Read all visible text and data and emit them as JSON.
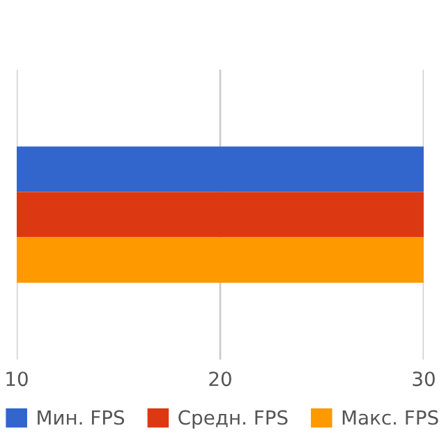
{
  "chart_data": {
    "type": "bar",
    "orientation": "horizontal",
    "categories": [
      null
    ],
    "series": [
      {
        "name": "Мин. FPS",
        "color": "#3366cc",
        "values": [
          30
        ]
      },
      {
        "name": "Средн. FPS",
        "color": "#dc3912",
        "values": [
          30
        ]
      },
      {
        "name": "Макс. FPS",
        "color": "#ff9900",
        "values": [
          30
        ]
      }
    ],
    "xlim": [
      10,
      30
    ],
    "xticks": [
      10,
      20,
      30
    ],
    "grid": "x",
    "legend": "bottom"
  }
}
